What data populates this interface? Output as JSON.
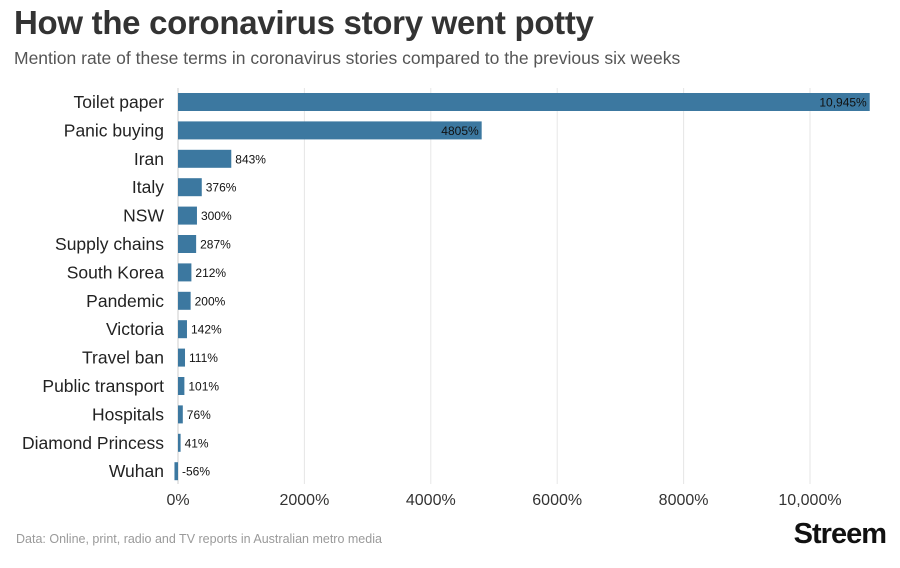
{
  "title": "How the coronavirus story went potty",
  "subtitle": "Mention rate of these terms in coronavirus stories compared to the previous six weeks",
  "source": "Data: Online, print, radio and TV reports in Australian metro media",
  "brand": "Streem",
  "colors": {
    "bar": "#3c78a0",
    "grid": "#e6e6e6",
    "text": "#222222"
  },
  "chart_data": {
    "type": "bar",
    "orientation": "horizontal",
    "categories": [
      "Toilet paper",
      "Panic buying",
      "Iran",
      "Italy",
      "NSW",
      "Supply chains",
      "South Korea",
      "Pandemic",
      "Victoria",
      "Travel ban",
      "Public transport",
      "Hospitals",
      "Diamond Princess",
      "Wuhan"
    ],
    "values": [
      10945,
      4805,
      843,
      376,
      300,
      287,
      212,
      200,
      142,
      111,
      101,
      76,
      41,
      -56
    ],
    "value_labels": [
      "10,945%",
      "4805%",
      "843%",
      "376%",
      "300%",
      "287%",
      "212%",
      "200%",
      "142%",
      "111%",
      "101%",
      "76%",
      "41%",
      "-56%"
    ],
    "xlim": [
      0,
      11000
    ],
    "xticks": [
      0,
      2000,
      4000,
      6000,
      8000,
      10000
    ],
    "xtick_labels": [
      "0%",
      "2000%",
      "4000%",
      "6000%",
      "8000%",
      "10,000%"
    ],
    "grid": true,
    "legend": "none"
  }
}
